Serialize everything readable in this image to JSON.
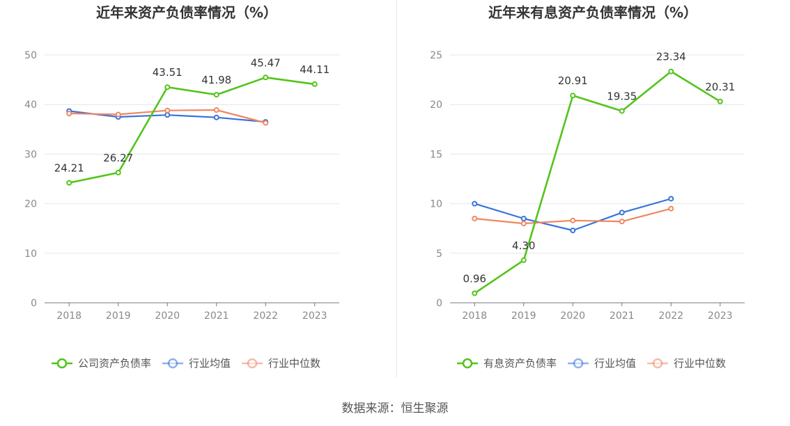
{
  "source": "数据来源：恒生聚源",
  "colors": {
    "green": "#52c41a",
    "blue": "#3673dc",
    "orange": "#f08660"
  },
  "chart_data": [
    {
      "type": "line",
      "title": "近年来资产负债率情况（%）",
      "categories": [
        "2018",
        "2019",
        "2020",
        "2021",
        "2022",
        "2023"
      ],
      "ylim": [
        0,
        50
      ],
      "yticks": [
        0,
        10,
        20,
        30,
        40,
        50
      ],
      "grid": true,
      "legend_position": "bottom",
      "series": [
        {
          "name": "公司资产负债率",
          "color": "#52c41a",
          "labels": true,
          "values": [
            24.21,
            26.27,
            43.51,
            41.98,
            45.47,
            44.11
          ]
        },
        {
          "name": "行业均值",
          "color": "#3673dc",
          "labels": false,
          "values": [
            38.7,
            37.5,
            37.9,
            37.4,
            36.5,
            null
          ]
        },
        {
          "name": "行业中位数",
          "color": "#f08660",
          "labels": false,
          "values": [
            38.2,
            38.0,
            38.8,
            38.9,
            36.3,
            null
          ]
        }
      ]
    },
    {
      "type": "line",
      "title": "近年来有息资产负债率情况（%）",
      "categories": [
        "2018",
        "2019",
        "2020",
        "2021",
        "2022",
        "2023"
      ],
      "ylim": [
        0,
        25
      ],
      "yticks": [
        0,
        5,
        10,
        15,
        20,
        25
      ],
      "grid": true,
      "legend_position": "bottom",
      "series": [
        {
          "name": "有息资产负债率",
          "color": "#52c41a",
          "labels": true,
          "values": [
            0.96,
            4.3,
            20.91,
            19.35,
            23.34,
            20.31
          ]
        },
        {
          "name": "行业均值",
          "color": "#3673dc",
          "labels": false,
          "values": [
            10.0,
            8.5,
            7.3,
            9.1,
            10.5,
            null
          ]
        },
        {
          "name": "行业中位数",
          "color": "#f08660",
          "labels": false,
          "values": [
            8.5,
            8.0,
            8.3,
            8.2,
            9.5,
            null
          ]
        }
      ]
    }
  ]
}
